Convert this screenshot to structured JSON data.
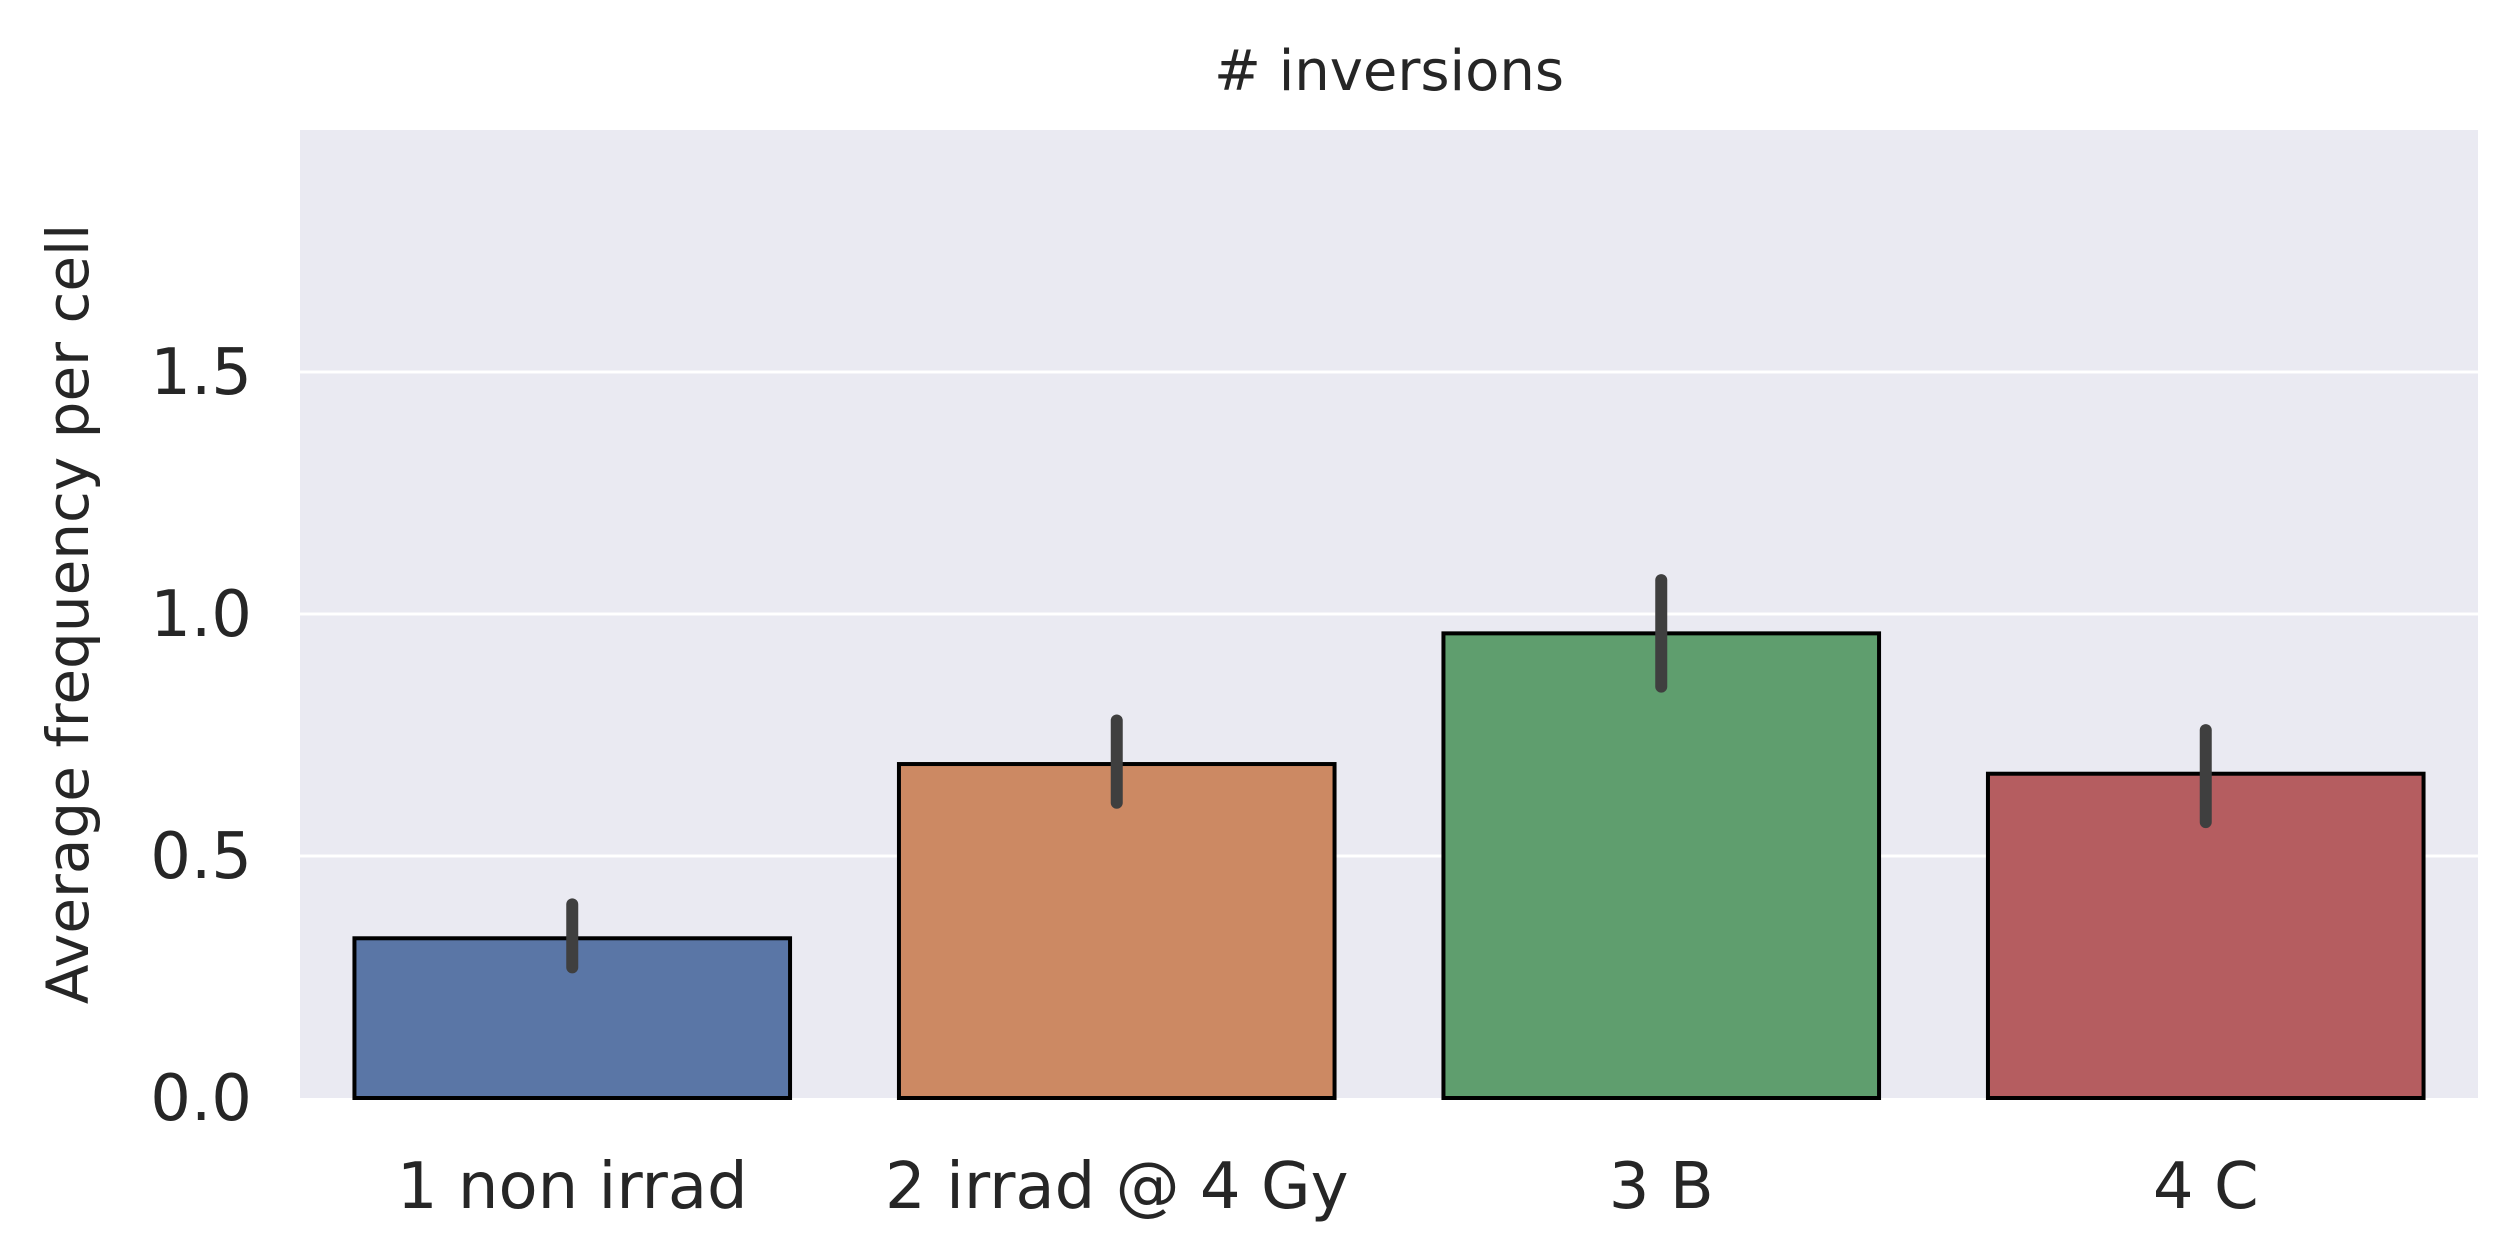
{
  "chart_data": {
    "type": "bar",
    "title": "# inversions",
    "xlabel": "",
    "ylabel": "Average frequency per cell",
    "categories": [
      "1 non irrad",
      "2 irrad @ 4 Gy",
      "3 B",
      "4 C"
    ],
    "values": [
      0.33,
      0.69,
      0.96,
      0.67
    ],
    "error_bars": [
      {
        "low": 0.27,
        "high": 0.4
      },
      {
        "low": 0.61,
        "high": 0.78
      },
      {
        "low": 0.85,
        "high": 1.07
      },
      {
        "low": 0.57,
        "high": 0.76
      }
    ],
    "ylim": [
      0,
      2.0
    ],
    "yticks": [
      0.0,
      0.5,
      1.0,
      1.5
    ],
    "ytick_labels": [
      "0.0",
      "0.5",
      "1.0",
      "1.5"
    ],
    "grid": true,
    "colors": {
      "background": "#EAEAF2",
      "grid": "#FFFFFF",
      "bar_edge": "#000000",
      "error_bar": "#3F3F3F",
      "bars": [
        "#5A76A6",
        "#CC8963",
        "#5F9E6E",
        "#B55D60"
      ]
    }
  }
}
